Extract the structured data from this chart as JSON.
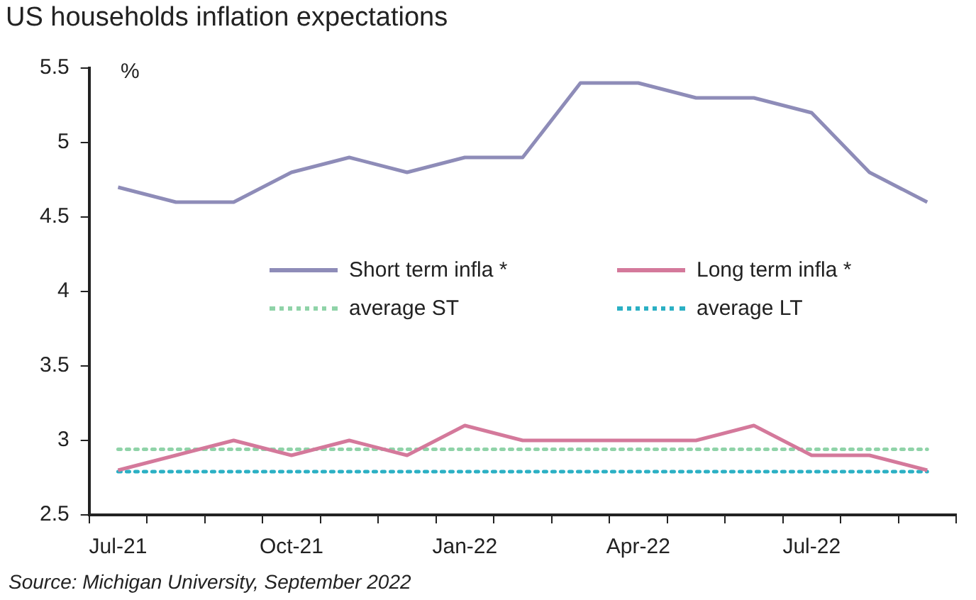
{
  "chart_data": {
    "type": "line",
    "title": "US households inflation expectations",
    "ylabel": "%",
    "categories": [
      "Jul-21",
      null,
      null,
      "Oct-21",
      null,
      null,
      "Jan-22",
      null,
      null,
      "Apr-22",
      null,
      null,
      "Jul-22",
      null,
      null
    ],
    "series": [
      {
        "name": "Short term infla *",
        "color": "#8e8cb8",
        "values": [
          4.7,
          4.6,
          4.6,
          4.8,
          4.9,
          4.8,
          4.9,
          4.9,
          5.4,
          5.4,
          5.3,
          5.3,
          5.2,
          4.8,
          4.6
        ]
      },
      {
        "name": "Long term infla *",
        "color": "#d4799b",
        "values": [
          2.8,
          2.9,
          3.0,
          2.9,
          3.0,
          2.9,
          3.1,
          3.0,
          3.0,
          3.0,
          3.0,
          3.1,
          2.9,
          2.9,
          2.8
        ]
      },
      {
        "name": "average ST",
        "color": "#8fd3a8",
        "line_style": "dotted",
        "values": [
          2.94,
          2.94,
          2.94,
          2.94,
          2.94,
          2.94,
          2.94,
          2.94,
          2.94,
          2.94,
          2.94,
          2.94,
          2.94,
          2.94,
          2.94
        ]
      },
      {
        "name": "average LT",
        "color": "#2bb0c4",
        "line_style": "dotted",
        "values": [
          2.79,
          2.79,
          2.79,
          2.79,
          2.79,
          2.79,
          2.79,
          2.79,
          2.79,
          2.79,
          2.79,
          2.79,
          2.79,
          2.79,
          2.79
        ]
      }
    ],
    "ylim": [
      2.5,
      5.5
    ],
    "yticks": [
      2.5,
      3,
      3.5,
      4,
      4.5,
      5,
      5.5
    ],
    "grid": false,
    "legend": "center",
    "marker": "none",
    "line_style": "solid",
    "annotations": [
      "Source: Michigan University, September 2022"
    ]
  }
}
